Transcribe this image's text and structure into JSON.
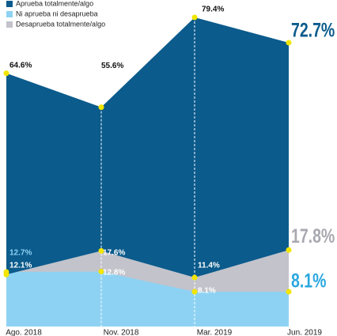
{
  "chart_data": {
    "type": "area",
    "categories": [
      "Ago. 2018",
      "Nov. 2018",
      "Mar. 2019",
      "Jun. 2019"
    ],
    "series": [
      {
        "name": "Aprueba totalmente/algo",
        "color": "#0b5b8c",
        "axis": "y2",
        "values": [
          64.6,
          55.6,
          79.4,
          72.7
        ],
        "value_labels": [
          "64.6%",
          "55.6%",
          "79.4%",
          "72.7%"
        ]
      },
      {
        "name": "Ni aprueba ni desaprueba",
        "color": "#8ed2f3",
        "values": [
          12.7,
          12.8,
          8.1,
          8.1
        ],
        "value_labels": [
          "12.7%",
          "12.8%",
          "8.1%",
          "8.1%"
        ]
      },
      {
        "name": "Desaprueba totalmente/algo",
        "color": "#c3c3cb",
        "values": [
          12.1,
          17.6,
          11.4,
          17.8
        ],
        "value_labels": [
          "12.1%",
          "17.6%",
          "11.4%",
          "17.8%"
        ]
      }
    ],
    "ylim": [
      0,
      76
    ],
    "y2lim": [
      -2.5,
      84
    ],
    "legend": "upper left",
    "marker_color": "#f2e600"
  }
}
